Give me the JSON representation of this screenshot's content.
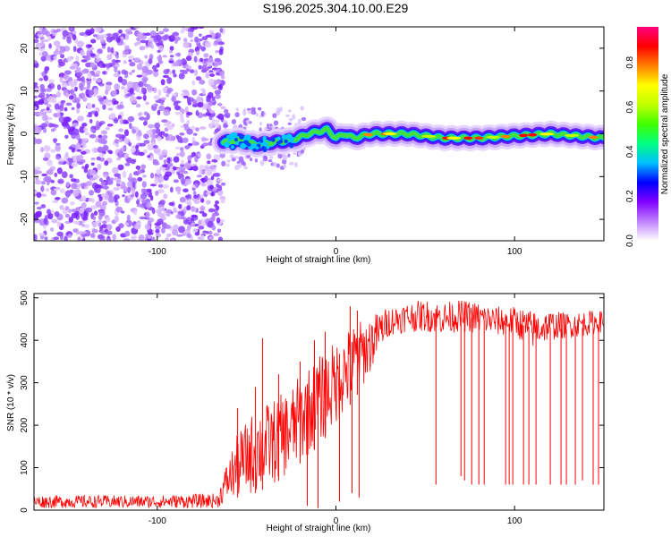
{
  "title": "S196.2025.304.10.00.E29",
  "chart_data": [
    {
      "type": "heatmap",
      "xlabel": "Height of straight line (km)",
      "ylabel": "Frequency (Hz)",
      "xlim": [
        -169,
        150
      ],
      "ylim": [
        -25,
        25
      ],
      "x_ticks": [
        -100,
        0,
        100
      ],
      "y_ticks": [
        -20,
        -10,
        0,
        10,
        20
      ],
      "grid": false,
      "colorbar": {
        "label": "Normalized spectral amplitude",
        "range": [
          0,
          0.96
        ],
        "ticks": [
          0.0,
          0.2,
          0.4,
          0.6,
          0.8
        ],
        "colors": [
          "#ffffff",
          "#c080ff",
          "#8000ff",
          "#0000ff",
          "#00c0ff",
          "#00ff80",
          "#40ff00",
          "#c0ff00",
          "#ffff00",
          "#ff8000",
          "#ff0000",
          "#ff0080"
        ]
      },
      "noise_region": {
        "x": [
          -169,
          -63
        ],
        "y": [
          -25,
          25
        ]
      },
      "ridge": {
        "x": [
          -63,
          -55,
          -45,
          -35,
          -25,
          -15,
          -5,
          0,
          5,
          10,
          20,
          40,
          60,
          80,
          100,
          120,
          150
        ],
        "y": [
          -2,
          -1.5,
          -2.5,
          -2,
          -1.5,
          0,
          1,
          -1,
          0,
          -1,
          0,
          0,
          -1,
          -1,
          -0.5,
          0,
          -1
        ]
      }
    },
    {
      "type": "line",
      "xlabel": "Height of straight line (km)",
      "ylabel": "SNR (10 * v/v)",
      "xlim": [
        -169,
        150
      ],
      "ylim": [
        0,
        510
      ],
      "x_ticks": [
        -100,
        0,
        100
      ],
      "y_ticks": [
        0,
        100,
        200,
        300,
        400,
        500
      ],
      "grid": false,
      "series": [
        {
          "color": "#ff0000",
          "envelope": {
            "x": [
              -169,
              -100,
              -66,
              -62,
              -55,
              -45,
              -35,
              -25,
              -20,
              -10,
              0,
              5,
              10,
              15,
              20,
              25,
              30,
              40,
              50,
              60,
              70,
              80,
              90,
              100,
              110,
              120,
              130,
              140,
              150
            ],
            "low": [
              5,
              5,
              5,
              20,
              30,
              40,
              60,
              90,
              110,
              150,
              200,
              230,
              260,
              290,
              330,
              380,
              410,
              420,
              420,
              415,
              420,
              415,
              410,
              410,
              380,
              400,
              405,
              410,
              420
            ],
            "high": [
              35,
              35,
              40,
              100,
              180,
              240,
              260,
              290,
              320,
              360,
              400,
              420,
              440,
              450,
              460,
              470,
              480,
              490,
              495,
              490,
              495,
              490,
              480,
              480,
              470,
              470,
              465,
              470,
              470
            ]
          },
          "spikes_up": [
            {
              "x": -55,
              "y": 240
            },
            {
              "x": -45,
              "y": 290
            },
            {
              "x": -41,
              "y": 405
            },
            {
              "x": -32,
              "y": 320
            },
            {
              "x": -20,
              "y": 350
            },
            {
              "x": -12,
              "y": 400
            },
            {
              "x": -6,
              "y": 420
            },
            {
              "x": 8,
              "y": 480
            },
            {
              "x": 12,
              "y": 470
            }
          ],
          "dropouts": [
            {
              "x": -16,
              "y": 10
            },
            {
              "x": -10,
              "y": 5
            },
            {
              "x": 2,
              "y": 20
            },
            {
              "x": 9,
              "y": 40
            },
            {
              "x": 13,
              "y": 30
            },
            {
              "x": 56,
              "y": 60
            },
            {
              "x": 70,
              "y": 80
            },
            {
              "x": 72,
              "y": 70
            },
            {
              "x": 76,
              "y": 60
            },
            {
              "x": 80,
              "y": 60
            },
            {
              "x": 83,
              "y": 60
            },
            {
              "x": 95,
              "y": 60
            },
            {
              "x": 97,
              "y": 60
            },
            {
              "x": 99,
              "y": 60
            },
            {
              "x": 105,
              "y": 60
            },
            {
              "x": 108,
              "y": 60
            },
            {
              "x": 112,
              "y": 60
            },
            {
              "x": 120,
              "y": 60
            },
            {
              "x": 126,
              "y": 60
            },
            {
              "x": 129,
              "y": 60
            },
            {
              "x": 134,
              "y": 60
            },
            {
              "x": 138,
              "y": 70
            },
            {
              "x": 144,
              "y": 60
            },
            {
              "x": 147,
              "y": 60
            }
          ]
        }
      ]
    }
  ]
}
